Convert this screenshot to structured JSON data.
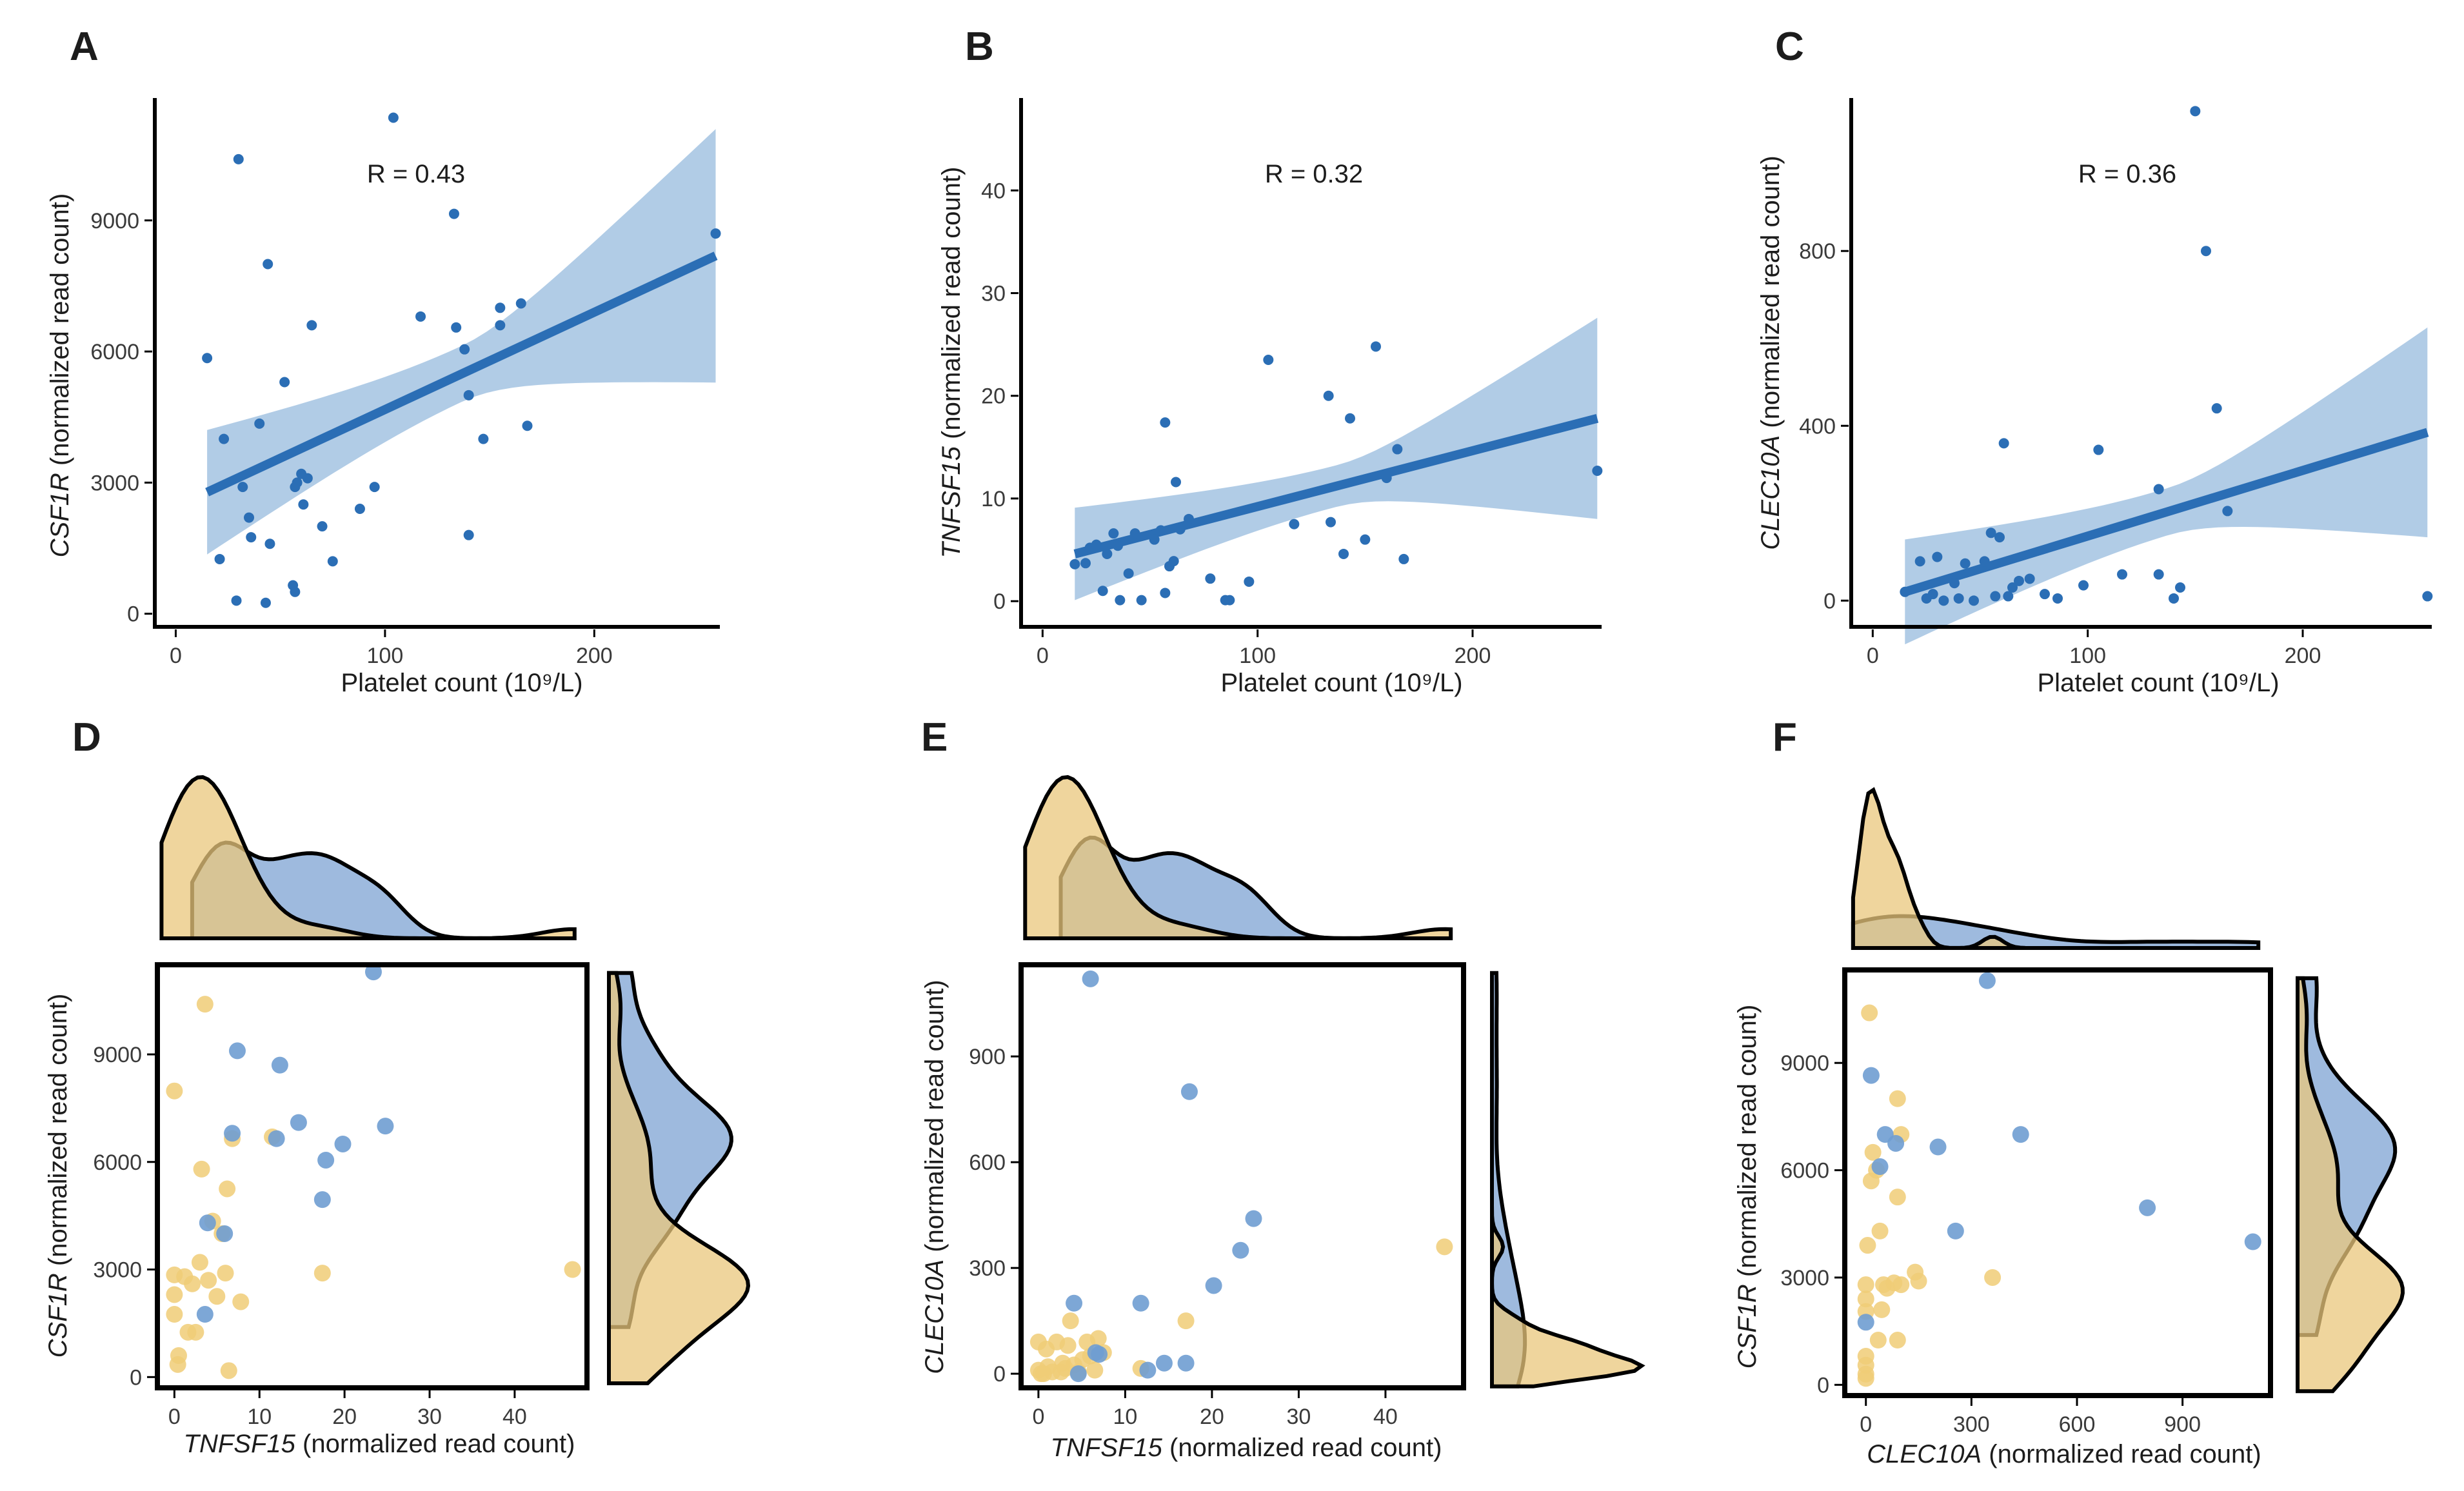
{
  "colors": {
    "blue": "#2b6eb5",
    "band": "#a9c6e3",
    "scatter_blue": "#6f9dd1",
    "scatter_yellow": "#f0cc77",
    "dens_blue": "#7da3d3",
    "dens_yellow": "#e9c77c",
    "axis": "#000000"
  },
  "chart_data": [
    {
      "panel": "A",
      "type": "scatter",
      "xlabel": "Platelet count (10⁹/L)",
      "ylabel": "CSF1R (normalized read count)",
      "ylabel_gene": "CSF1R",
      "ylabel_rest": " (normalized read count)",
      "annotation": "R = 0.43",
      "xlim": [
        -10,
        260
      ],
      "ylim": [
        -300,
        11800
      ],
      "xticks": [
        0,
        100,
        200
      ],
      "yticks": [
        0,
        3000,
        6000,
        9000
      ],
      "x": [
        15,
        21,
        23,
        29,
        30,
        32,
        35,
        36,
        40,
        43,
        44,
        45,
        52,
        56,
        57,
        57,
        58,
        60,
        61,
        63,
        65,
        70,
        75,
        88,
        95,
        104,
        117,
        134,
        133,
        138,
        140,
        140,
        147,
        155,
        155,
        165,
        168,
        258
      ],
      "y": [
        5850,
        1250,
        4000,
        300,
        10400,
        2900,
        2200,
        1750,
        4350,
        250,
        8000,
        1600,
        5300,
        650,
        2900,
        500,
        3000,
        3200,
        2500,
        3100,
        6600,
        2000,
        1200,
        2400,
        2900,
        11350,
        6800,
        6550,
        9150,
        6050,
        1800,
        5000,
        4000,
        7000,
        6600,
        7100,
        4300,
        8700
      ],
      "fit": {
        "x": [
          15,
          258
        ],
        "y": [
          2780,
          8190
        ],
        "ci_lower": [
          1300,
          5300
        ],
        "ci_upper": [
          4150,
          11100
        ]
      }
    },
    {
      "panel": "B",
      "type": "scatter",
      "xlabel": "Platelet count (10⁹/L)",
      "ylabel": "TNFSF15 (normalized read count)",
      "ylabel_gene": "TNFSF15",
      "ylabel_rest": " (normalized read count)",
      "annotation": "R = 0.32",
      "xlim": [
        -10,
        260
      ],
      "ylim": [
        -2.5,
        49
      ],
      "xticks": [
        0,
        100,
        200
      ],
      "yticks": [
        0,
        10,
        20,
        30,
        40
      ],
      "x": [
        15,
        20,
        22,
        25,
        28,
        30,
        33,
        35,
        36,
        40,
        43,
        46,
        52,
        55,
        57,
        57,
        59,
        61,
        62,
        64,
        68,
        78,
        85,
        87,
        96,
        105,
        117,
        133,
        134,
        140,
        143,
        150,
        155,
        160,
        165,
        168,
        258
      ],
      "y": [
        3.6,
        3.7,
        5.2,
        5.5,
        1.0,
        4.6,
        6.6,
        5.4,
        0.1,
        2.7,
        6.6,
        0.1,
        6.0,
        6.9,
        17.4,
        0.8,
        3.4,
        3.9,
        11.6,
        7.0,
        8.0,
        2.2,
        0.1,
        0.1,
        1.9,
        23.5,
        7.5,
        20.0,
        7.7,
        4.6,
        17.8,
        6.0,
        24.8,
        12.0,
        14.8,
        4.1,
        12.7
      ],
      "fit": {
        "x": [
          15,
          258
        ],
        "y": [
          4.6,
          17.8
        ],
        "ci_lower": [
          0.5,
          7.9
        ],
        "ci_upper": [
          9.5,
          27.5
        ]
      }
    },
    {
      "panel": "C",
      "type": "scatter",
      "xlabel": "Platelet count (10⁹/L)",
      "ylabel": "CLEC10A (normalized read count)",
      "ylabel_gene": "CLEC10A",
      "ylabel_rest": " (normalized read count)",
      "annotation": "R = 0.36",
      "xlim": [
        -10,
        260
      ],
      "ylim": [
        -60,
        1150
      ],
      "xticks": [
        0,
        100,
        200
      ],
      "yticks": [
        0,
        400,
        800
      ],
      "x": [
        15,
        22,
        25,
        28,
        30,
        33,
        38,
        40,
        43,
        47,
        52,
        55,
        57,
        59,
        61,
        63,
        65,
        68,
        73,
        80,
        86,
        98,
        105,
        116,
        133,
        133,
        140,
        143,
        150,
        155,
        160,
        165,
        258
      ],
      "y": [
        20,
        90,
        5,
        15,
        100,
        0,
        40,
        5,
        85,
        0,
        90,
        155,
        10,
        145,
        360,
        10,
        30,
        45,
        50,
        15,
        5,
        35,
        345,
        60,
        255,
        60,
        5,
        30,
        1120,
        800,
        440,
        205,
        10
      ],
      "fit": {
        "x": [
          15,
          258
        ],
        "y": [
          20,
          385
        ],
        "ci_lower": [
          -100,
          140
        ],
        "ci_upper": [
          140,
          620
        ]
      }
    },
    {
      "panel": "D",
      "type": "scatter",
      "xlabel": "TNFSF15 (normalized read count)",
      "xlabel_gene": "TNFSF15",
      "xlabel_rest": " (normalized read count)",
      "ylabel": "CSF1R (normalized read count)",
      "ylabel_gene": "CSF1R",
      "ylabel_rest": " (normalized read count)",
      "xlim": [
        -2,
        48.5
      ],
      "ylim": [
        -300,
        11500
      ],
      "xticks": [
        0,
        10,
        20,
        30,
        40
      ],
      "yticks": [
        0,
        3000,
        6000,
        9000
      ],
      "series": [
        {
          "name": "yellow",
          "x": [
            0,
            0,
            0,
            0,
            0.4,
            0.5,
            1.2,
            1.6,
            2.1,
            2.5,
            3.0,
            3.2,
            3.6,
            4.0,
            4.5,
            5.0,
            5.6,
            6.0,
            6.2,
            6.4,
            6.8,
            7.8,
            11.5,
            17.4,
            46.8
          ],
          "y": [
            7980,
            2850,
            2300,
            1750,
            350,
            600,
            2800,
            1250,
            2600,
            1250,
            3200,
            5800,
            10400,
            2700,
            4350,
            2250,
            4000,
            2900,
            5250,
            180,
            6650,
            2100,
            6700,
            2900,
            3000
          ]
        },
        {
          "name": "blue",
          "x": [
            3.6,
            3.9,
            5.9,
            6.8,
            7.4,
            12.0,
            12.4,
            14.6,
            17.4,
            17.8,
            19.8,
            23.4,
            24.8
          ],
          "y": [
            1750,
            4300,
            4000,
            6800,
            9100,
            6650,
            8700,
            7100,
            4950,
            6050,
            6500,
            11300,
            7000
          ]
        }
      ]
    },
    {
      "panel": "E",
      "type": "scatter",
      "xlabel": "TNFSF15 (normalized read count)",
      "xlabel_gene": "TNFSF15",
      "xlabel_rest": " (normalized read count)",
      "ylabel": "CLEC10A (normalized read count)",
      "ylabel_gene": "CLEC10A",
      "ylabel_rest": " (normalized read count)",
      "xlim": [
        -2,
        49
      ],
      "ylim": [
        -40,
        1160
      ],
      "xticks": [
        0,
        10,
        20,
        30,
        40
      ],
      "yticks": [
        0,
        300,
        600,
        900
      ],
      "series": [
        {
          "name": "yellow",
          "x": [
            0,
            0,
            0.3,
            0.6,
            0.9,
            1.1,
            1.6,
            2.1,
            2.6,
            2.8,
            3.1,
            3.4,
            3.7,
            4.1,
            4.6,
            5.1,
            5.6,
            6.0,
            6.5,
            6.9,
            7.5,
            11.8,
            17.0,
            46.8
          ],
          "y": [
            90,
            10,
            0,
            0,
            70,
            20,
            5,
            90,
            5,
            30,
            15,
            80,
            150,
            25,
            5,
            40,
            90,
            50,
            10,
            100,
            60,
            15,
            150,
            360
          ]
        },
        {
          "name": "blue",
          "x": [
            4.1,
            4.6,
            6.0,
            6.6,
            7.0,
            11.8,
            12.6,
            14.5,
            17.0,
            17.4,
            20.2,
            23.3,
            24.8
          ],
          "y": [
            200,
            0,
            1120,
            60,
            55,
            200,
            10,
            30,
            30,
            800,
            250,
            350,
            440
          ]
        }
      ]
    },
    {
      "panel": "F",
      "type": "scatter",
      "xlabel": "CLEC10A (normalized read count)",
      "xlabel_gene": "CLEC10A",
      "xlabel_rest": " (normalized read count)",
      "ylabel": "CSF1R (normalized read count)",
      "ylabel_gene": "CSF1R",
      "ylabel_rest": " (normalized read count)",
      "xlim": [
        -60,
        1150
      ],
      "ylim": [
        -300,
        11600
      ],
      "xticks": [
        0,
        300,
        600,
        900
      ],
      "yticks": [
        0,
        3000,
        6000,
        9000
      ],
      "series": [
        {
          "name": "yellow",
          "x": [
            0,
            0,
            0,
            0,
            0,
            0,
            0,
            5,
            10,
            15,
            20,
            30,
            35,
            40,
            45,
            50,
            60,
            80,
            90,
            90,
            90,
            100,
            100,
            140,
            150,
            360
          ],
          "y": [
            180,
            300,
            550,
            800,
            2800,
            2400,
            2050,
            3900,
            10400,
            5700,
            6500,
            6000,
            1250,
            4300,
            2100,
            2800,
            2700,
            2850,
            5250,
            8000,
            1250,
            7000,
            2800,
            3150,
            2900,
            3000
          ]
        },
        {
          "name": "blue",
          "x": [
            0,
            15,
            40,
            55,
            85,
            205,
            255,
            345,
            440,
            800,
            1100
          ],
          "y": [
            1750,
            8650,
            6100,
            7000,
            6750,
            6650,
            4300,
            11300,
            7000,
            4950,
            4000
          ]
        }
      ]
    }
  ],
  "panel_labels": [
    "A",
    "B",
    "C",
    "D",
    "E",
    "F"
  ]
}
